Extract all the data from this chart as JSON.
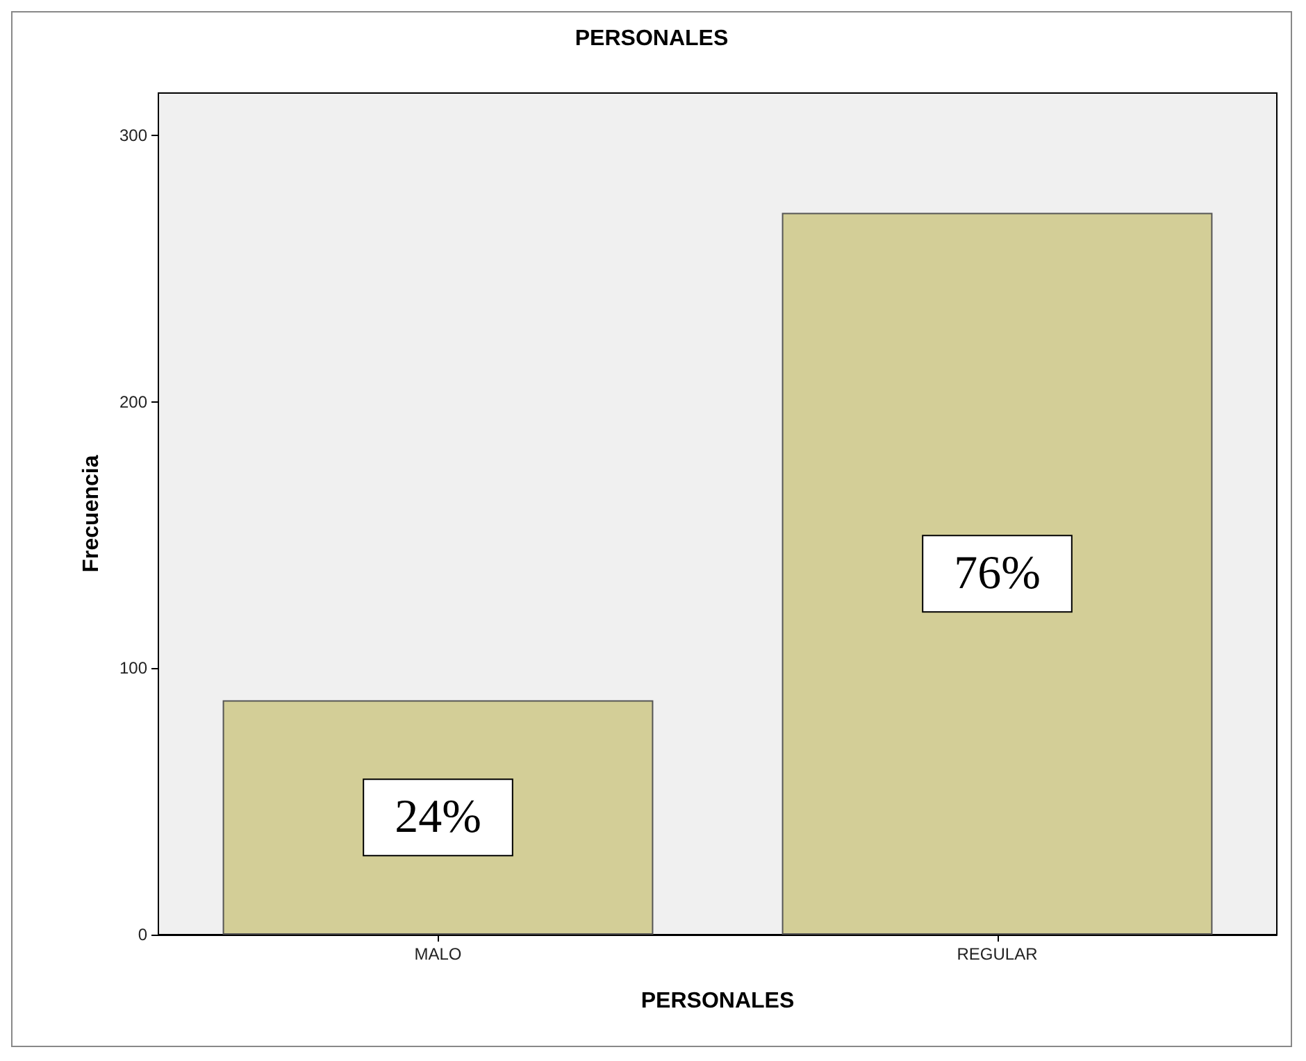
{
  "chart_data": {
    "type": "bar",
    "title": "PERSONALES",
    "xlabel": "PERSONALES",
    "ylabel": "Frecuencia",
    "categories": [
      "MALO",
      "REGULAR"
    ],
    "values": [
      88,
      271
    ],
    "color": "#d3ce97",
    "annotations": [
      "24%",
      "76%"
    ],
    "ylim": [
      0,
      316
    ],
    "yticks": [
      0,
      100,
      200,
      300
    ],
    "grid": false
  }
}
